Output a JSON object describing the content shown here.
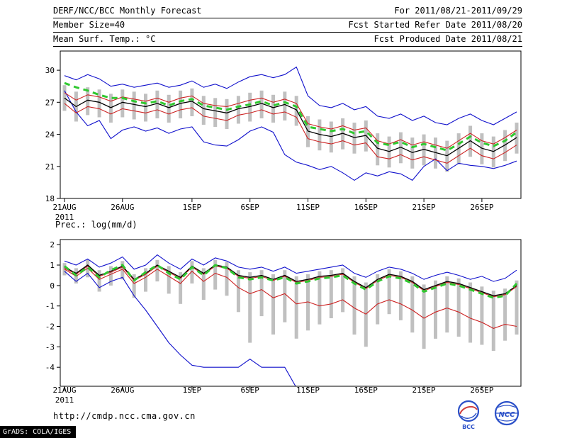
{
  "header": {
    "title": "DERF/NCC/BCC Monthly Forecast",
    "for_range": "For 2011/08/21-2011/09/29",
    "member_size": "Member Size=40",
    "ref_date": "Fcst Started Refer Date 2011/08/20",
    "var_label": "Mean Surf. Temp.: °C",
    "produced_date": "Fcst Produced Date 2011/08/21"
  },
  "footer": {
    "url": "http://cmdp.ncc.cma.gov.cn",
    "grads_credit": "GrADS: COLA/IGES",
    "logos": [
      "BCC",
      "NCC"
    ]
  },
  "colors": {
    "blue": "#1010cc",
    "red": "#cc2222",
    "black": "#000000",
    "green": "#30c830",
    "bar_gray": "#c0c0c0"
  },
  "chart_data": [
    {
      "type": "line",
      "title": "Mean Surf. Temp.: °C",
      "ylim": [
        18,
        31.8
      ],
      "yticks": [
        18,
        21,
        24,
        27,
        30
      ],
      "n_points": 40,
      "x_tick_positions": [
        0,
        5,
        11,
        16,
        21,
        26,
        31,
        36
      ],
      "x_tick_labels": [
        "21AUG",
        "26AUG",
        "1SEP",
        "6SEP",
        "11SEP",
        "16SEP",
        "21SEP",
        "26SEP"
      ],
      "x_year_label": "2011",
      "grid": false,
      "bars": {
        "color": "#c0c0c0",
        "high": [
          28.6,
          28.0,
          28.4,
          28.2,
          27.8,
          28.2,
          28.0,
          27.8,
          28.1,
          27.7,
          28.1,
          28.3,
          27.6,
          27.4,
          27.3,
          27.6,
          27.9,
          28.1,
          27.7,
          28.0,
          27.6,
          25.7,
          25.4,
          25.2,
          25.5,
          25.1,
          25.3,
          24.1,
          23.8,
          24.2,
          23.7,
          24.0,
          23.7,
          23.4,
          24.1,
          24.8,
          24.1,
          23.8,
          24.4,
          25.1
        ],
        "low": [
          26.2,
          25.2,
          25.8,
          25.6,
          25.1,
          25.6,
          25.4,
          25.2,
          25.5,
          25.1,
          25.5,
          25.7,
          24.9,
          24.7,
          24.5,
          25.0,
          25.2,
          25.5,
          25.1,
          25.3,
          24.8,
          22.8,
          22.5,
          22.3,
          22.6,
          22.2,
          22.4,
          21.1,
          20.9,
          21.3,
          20.8,
          21.1,
          20.8,
          20.5,
          21.2,
          21.9,
          21.2,
          20.9,
          21.5,
          22.2
        ]
      },
      "series": [
        {
          "name": "blue-upper-envelope",
          "color": "#1010cc",
          "width": 1.1,
          "values": [
            29.5,
            29.1,
            29.6,
            29.2,
            28.5,
            28.7,
            28.4,
            28.6,
            28.8,
            28.4,
            28.6,
            29.0,
            28.4,
            28.7,
            28.3,
            28.9,
            29.4,
            29.6,
            29.3,
            29.6,
            30.3,
            27.6,
            26.7,
            26.5,
            26.9,
            26.3,
            26.6,
            25.7,
            25.5,
            25.9,
            25.3,
            25.7,
            25.1,
            24.9,
            25.5,
            25.9,
            25.3,
            24.9,
            25.5,
            26.1
          ]
        },
        {
          "name": "blue-lower-envelope",
          "color": "#1010cc",
          "width": 1.1,
          "values": [
            28.1,
            26.1,
            24.8,
            25.3,
            23.6,
            24.4,
            24.7,
            24.3,
            24.6,
            24.1,
            24.5,
            24.7,
            23.3,
            23.0,
            22.9,
            23.5,
            24.3,
            24.7,
            24.2,
            22.1,
            21.4,
            21.1,
            20.7,
            21.0,
            20.4,
            19.7,
            20.4,
            20.1,
            20.5,
            20.3,
            19.7,
            21.0,
            21.7,
            20.6,
            21.3,
            21.1,
            21.0,
            20.8,
            21.1,
            21.5
          ]
        },
        {
          "name": "red-upper",
          "color": "#cc2222",
          "width": 1.1,
          "values": [
            27.9,
            27.2,
            27.7,
            27.5,
            27.1,
            27.5,
            27.3,
            27.1,
            27.4,
            27.0,
            27.4,
            27.6,
            26.9,
            26.7,
            26.6,
            26.9,
            27.2,
            27.4,
            27.0,
            27.3,
            26.9,
            25.0,
            24.7,
            24.5,
            24.8,
            24.4,
            24.6,
            23.4,
            23.1,
            23.5,
            23.0,
            23.3,
            23.0,
            22.7,
            23.4,
            24.1,
            23.4,
            23.1,
            23.7,
            24.4
          ]
        },
        {
          "name": "red-lower",
          "color": "#cc2222",
          "width": 1.1,
          "values": [
            26.9,
            26.0,
            26.6,
            26.4,
            25.9,
            26.4,
            26.2,
            26.0,
            26.3,
            25.9,
            26.3,
            26.5,
            25.7,
            25.5,
            25.3,
            25.8,
            26.0,
            26.3,
            25.9,
            26.1,
            25.6,
            23.6,
            23.3,
            23.1,
            23.4,
            23.0,
            23.2,
            21.9,
            21.7,
            22.1,
            21.6,
            21.9,
            21.6,
            21.3,
            22.0,
            22.7,
            22.0,
            21.7,
            22.3,
            23.0
          ]
        },
        {
          "name": "black-ensemble-mean",
          "color": "#000000",
          "width": 1.3,
          "values": [
            27.4,
            26.6,
            27.2,
            27.0,
            26.5,
            27.0,
            26.8,
            26.6,
            26.9,
            26.5,
            26.9,
            27.1,
            26.4,
            26.2,
            26.0,
            26.4,
            26.6,
            26.9,
            26.5,
            26.8,
            26.3,
            24.3,
            24.0,
            23.8,
            24.1,
            23.7,
            23.9,
            22.7,
            22.4,
            22.8,
            22.3,
            22.6,
            22.3,
            22.0,
            22.7,
            23.4,
            22.7,
            22.4,
            23.0,
            23.7
          ]
        },
        {
          "name": "green-dashed",
          "color": "#30c830",
          "width": 3,
          "dashed": true,
          "values": [
            28.8,
            28.4,
            28.1,
            27.7,
            27.4,
            27.4,
            27.1,
            26.9,
            27.1,
            26.7,
            27.1,
            27.3,
            26.7,
            26.5,
            26.3,
            26.6,
            26.8,
            27.1,
            26.7,
            27.0,
            26.6,
            24.7,
            24.5,
            24.3,
            24.5,
            24.1,
            24.3,
            23.2,
            23.0,
            23.3,
            22.8,
            23.1,
            22.8,
            22.5,
            23.1,
            23.8,
            23.2,
            22.9,
            23.4,
            24.2
          ]
        }
      ]
    },
    {
      "type": "line",
      "title": "Prec.: log(mm/d)",
      "ylim": [
        -4.93,
        2.25
      ],
      "yticks": [
        -4,
        -3,
        -2,
        -1,
        0,
        1,
        2
      ],
      "n_points": 40,
      "x_tick_positions": [
        0,
        5,
        11,
        16,
        21,
        26,
        31,
        36
      ],
      "x_tick_labels": [
        "21AUG",
        "26AUG",
        "1SEP",
        "6SEP",
        "11SEP",
        "16SEP",
        "21SEP",
        "26SEP"
      ],
      "x_year_label": "2011",
      "grid": false,
      "bars": {
        "color": "#c0c0c0",
        "high": [
          1.1,
          0.85,
          1.25,
          0.75,
          0.95,
          1.2,
          0.55,
          0.85,
          1.25,
          0.95,
          0.65,
          1.2,
          0.85,
          1.25,
          1.15,
          0.75,
          0.65,
          0.75,
          0.55,
          0.75,
          0.45,
          0.55,
          0.7,
          0.75,
          0.85,
          0.45,
          0.15,
          0.55,
          0.8,
          0.7,
          0.45,
          0.05,
          0.25,
          0.45,
          0.35,
          0.15,
          -0.05,
          -0.25,
          -0.15,
          0.25
        ],
        "low": [
          0.5,
          0.1,
          0.4,
          -0.3,
          0.0,
          0.3,
          -0.6,
          -0.3,
          0.2,
          -0.4,
          -0.9,
          0.1,
          -0.7,
          -0.2,
          -0.5,
          -1.3,
          -2.8,
          -1.5,
          -2.4,
          -1.8,
          -2.6,
          -2.2,
          -1.9,
          -1.6,
          -1.3,
          -2.4,
          -3.0,
          -1.9,
          -1.4,
          -1.7,
          -2.3,
          -3.1,
          -2.6,
          -2.3,
          -2.5,
          -2.8,
          -2.9,
          -3.2,
          -2.7,
          -2.4
        ]
      },
      "series": [
        {
          "name": "blue-upper-envelope",
          "color": "#1010cc",
          "width": 1.1,
          "values": [
            1.2,
            1.0,
            1.3,
            0.9,
            1.1,
            1.4,
            0.8,
            1.0,
            1.5,
            1.1,
            0.8,
            1.3,
            1.0,
            1.35,
            1.2,
            0.9,
            0.8,
            0.9,
            0.7,
            0.9,
            0.6,
            0.7,
            0.8,
            0.9,
            1.0,
            0.6,
            0.4,
            0.7,
            0.9,
            0.8,
            0.6,
            0.3,
            0.5,
            0.65,
            0.5,
            0.3,
            0.45,
            0.2,
            0.35,
            0.75
          ]
        },
        {
          "name": "blue-lower-envelope",
          "color": "#1010cc",
          "width": 1.1,
          "values": [
            0.7,
            0.2,
            0.6,
            -0.1,
            0.2,
            0.4,
            -0.5,
            -1.2,
            -2.0,
            -2.8,
            -3.4,
            -3.9,
            -4.0,
            -4.0,
            -4.0,
            -4.0,
            -3.6,
            -4.0,
            -4.0,
            -4.0,
            -5.0,
            -5.0,
            -5.0,
            -5.0,
            -5.0,
            -5.0,
            -5.0,
            -5.0,
            -5.0,
            -5.0,
            -5.0,
            -5.0,
            -5.0,
            -5.0,
            -5.0,
            -5.0,
            -5.0,
            -5.0,
            -5.0,
            -5.0
          ]
        },
        {
          "name": "red-upper",
          "color": "#cc2222",
          "width": 1.1,
          "values": [
            0.85,
            0.55,
            0.95,
            0.45,
            0.65,
            0.9,
            0.25,
            0.55,
            0.95,
            0.65,
            0.35,
            0.9,
            0.55,
            0.95,
            0.85,
            0.45,
            0.35,
            0.45,
            0.25,
            0.45,
            0.15,
            0.25,
            0.4,
            0.45,
            0.55,
            0.15,
            -0.15,
            0.25,
            0.5,
            0.4,
            0.15,
            -0.25,
            -0.05,
            0.15,
            0.05,
            -0.15,
            -0.35,
            -0.55,
            -0.45,
            -0.05
          ]
        },
        {
          "name": "red-lower",
          "color": "#cc2222",
          "width": 1.1,
          "values": [
            0.8,
            0.45,
            0.85,
            0.3,
            0.55,
            0.8,
            0.1,
            0.4,
            0.8,
            0.45,
            0.1,
            0.7,
            0.2,
            0.6,
            0.4,
            -0.1,
            -0.4,
            -0.2,
            -0.6,
            -0.4,
            -0.9,
            -0.8,
            -1.0,
            -0.9,
            -0.7,
            -1.1,
            -1.4,
            -0.9,
            -0.7,
            -0.9,
            -1.2,
            -1.6,
            -1.3,
            -1.1,
            -1.3,
            -1.6,
            -1.8,
            -2.1,
            -1.9,
            -2.0
          ]
        },
        {
          "name": "black-ensemble-mean",
          "color": "#000000",
          "width": 1.3,
          "values": [
            0.9,
            0.6,
            1.0,
            0.5,
            0.7,
            0.95,
            0.3,
            0.6,
            1.0,
            0.7,
            0.4,
            0.95,
            0.6,
            1.0,
            0.9,
            0.5,
            0.4,
            0.5,
            0.3,
            0.5,
            0.2,
            0.3,
            0.45,
            0.5,
            0.6,
            0.2,
            -0.1,
            0.3,
            0.55,
            0.45,
            0.2,
            -0.2,
            0.0,
            0.2,
            0.1,
            -0.1,
            -0.3,
            -0.5,
            -0.4,
            0.0
          ]
        },
        {
          "name": "green-dashed",
          "color": "#30c830",
          "width": 3,
          "dashed": true,
          "values": [
            0.95,
            0.5,
            0.9,
            0.4,
            0.75,
            1.0,
            0.25,
            0.65,
            1.0,
            0.6,
            0.3,
            0.9,
            0.5,
            1.0,
            0.85,
            0.4,
            0.3,
            0.4,
            0.25,
            0.4,
            0.1,
            0.2,
            0.35,
            0.4,
            0.5,
            0.1,
            -0.2,
            0.2,
            0.45,
            0.35,
            0.1,
            -0.3,
            -0.1,
            0.1,
            0.0,
            -0.2,
            -0.4,
            -0.6,
            -0.5,
            0.1
          ]
        }
      ]
    }
  ]
}
